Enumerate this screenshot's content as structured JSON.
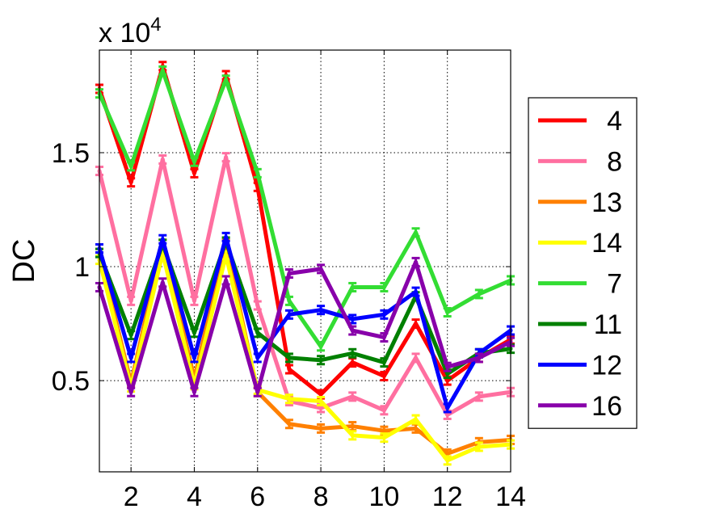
{
  "chart_data": {
    "type": "line",
    "title": "",
    "xlabel": "",
    "ylabel": "DC",
    "y_multiplier_label": "x 10",
    "y_multiplier_exponent": "4",
    "xlim": [
      1,
      14
    ],
    "ylim": [
      1000,
      19500
    ],
    "x_ticks": [
      2,
      4,
      6,
      8,
      10,
      12,
      14
    ],
    "x_tick_labels": [
      "2",
      "4",
      "6",
      "8",
      "10",
      "12",
      "14"
    ],
    "y_ticks": [
      5000,
      10000,
      15000
    ],
    "y_tick_labels": [
      "0.5",
      "1",
      "1.5"
    ],
    "grid": true,
    "legend_position": "right",
    "x": [
      1,
      2,
      3,
      4,
      5,
      6,
      7,
      8,
      9,
      10,
      11,
      12,
      13,
      14
    ],
    "series": [
      {
        "name": "4",
        "color": "#ff0000",
        "values": [
          17800,
          13700,
          18800,
          14100,
          18400,
          13500,
          5500,
          4400,
          5800,
          5200,
          7500,
          5000,
          6000,
          6800
        ]
      },
      {
        "name": "8",
        "color": "#ff6fa0",
        "values": [
          14200,
          8500,
          14700,
          8500,
          14800,
          8300,
          4100,
          3800,
          4300,
          3700,
          6000,
          3500,
          4300,
          4500
        ]
      },
      {
        "name": "13",
        "color": "#ff8000",
        "values": [
          10600,
          4900,
          11000,
          5100,
          11000,
          4500,
          3100,
          2900,
          3000,
          2800,
          2900,
          1800,
          2300,
          2400
        ]
      },
      {
        "name": "14",
        "color": "#ffff00",
        "values": [
          10300,
          4700,
          10600,
          4800,
          10500,
          4600,
          4200,
          4100,
          2600,
          2500,
          3300,
          1500,
          2100,
          2200
        ]
      },
      {
        "name": "7",
        "color": "#33dd33",
        "values": [
          17600,
          14400,
          18600,
          14600,
          18200,
          14100,
          8500,
          6500,
          9100,
          9100,
          11500,
          8000,
          8800,
          9400
        ]
      },
      {
        "name": "11",
        "color": "#008000",
        "values": [
          10600,
          7000,
          11000,
          7100,
          11100,
          7100,
          6000,
          5900,
          6200,
          5800,
          8700,
          5300,
          6200,
          6400
        ]
      },
      {
        "name": "12",
        "color": "#0000ff",
        "values": [
          10800,
          6000,
          11200,
          6000,
          11300,
          6000,
          7900,
          8100,
          7700,
          7900,
          8900,
          3800,
          6200,
          7200
        ]
      },
      {
        "name": "16",
        "color": "#8800aa",
        "values": [
          9100,
          4500,
          9300,
          4500,
          9400,
          4500,
          9700,
          9900,
          7200,
          6900,
          10200,
          5600,
          6000,
          6700
        ]
      }
    ]
  }
}
